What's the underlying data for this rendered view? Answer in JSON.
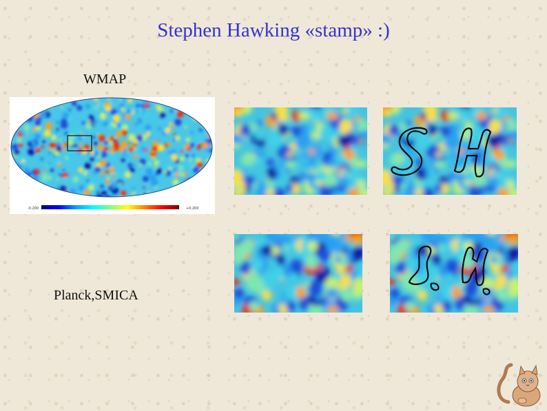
{
  "slide": {
    "title": "Stephen Hawking «stamp»  :)",
    "wmap_label": "WMAP",
    "planck_label": "Planck,SMICA"
  },
  "colorbar": {
    "min_label": "-0.200",
    "max_label": "+0.200",
    "colors": [
      "#00007f",
      "#0000ff",
      "#00a0ff",
      "#00ffff",
      "#7fff7f",
      "#ffff00",
      "#ff8000",
      "#ff0000",
      "#7f0000"
    ]
  },
  "panels": [
    {
      "name": "wmap-patch",
      "outlined_initials": false
    },
    {
      "name": "wmap-patch-with-initials",
      "outlined_initials": true,
      "initials": "S H"
    },
    {
      "name": "planck-patch",
      "outlined_initials": false
    },
    {
      "name": "planck-patch-with-initials",
      "outlined_initials": true,
      "initials": "S. H."
    }
  ],
  "colors": {
    "title": "#3333cc",
    "background": "#efe8d8"
  }
}
